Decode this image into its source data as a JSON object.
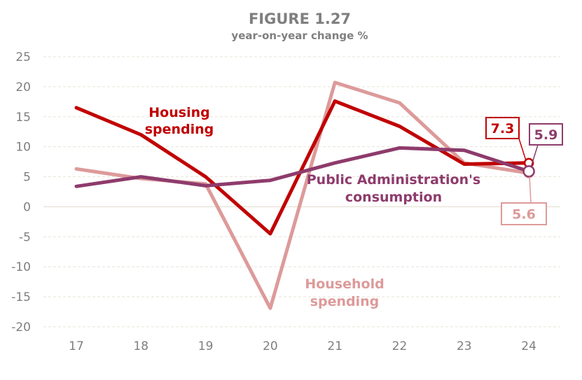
{
  "chart_data": {
    "type": "line",
    "title": "FIGURE 1.27",
    "subtitle": "year-on-year change %",
    "categories": [
      "17",
      "18",
      "19",
      "20",
      "21",
      "22",
      "23",
      "24"
    ],
    "ylim": [
      -20,
      25
    ],
    "yticks": [
      "25",
      "20",
      "15",
      "10",
      "5",
      "0",
      "-5",
      "-10",
      "-15",
      "-20"
    ],
    "grid": true,
    "series": [
      {
        "name": "Household spending",
        "color": "#dd9a9a",
        "values": [
          6.3,
          4.7,
          3.8,
          -16.9,
          20.7,
          17.3,
          7.3,
          5.6
        ]
      },
      {
        "name": "Housing spending",
        "color": "#c00000",
        "values": [
          16.5,
          12.0,
          5.0,
          -4.5,
          17.6,
          13.4,
          7.1,
          7.3
        ]
      },
      {
        "name": "Public Administration's consumption",
        "color": "#8e3b6c",
        "values": [
          3.4,
          5.0,
          3.5,
          4.4,
          7.3,
          9.8,
          9.4,
          5.9
        ]
      }
    ],
    "series_labels": [
      {
        "line1": "Housing",
        "line2": "spending",
        "color": "#c00000"
      },
      {
        "line1": "Public Administration's",
        "line2": "consumption",
        "color": "#8e3b6c"
      },
      {
        "line1": "Household",
        "line2": "spending",
        "color": "#dd9a9a"
      }
    ],
    "callouts": [
      {
        "text": "7.3",
        "color": "#c00000"
      },
      {
        "text": "5.9",
        "color": "#8e3b6c"
      },
      {
        "text": "5.6",
        "color": "#dd9a9a"
      }
    ]
  }
}
